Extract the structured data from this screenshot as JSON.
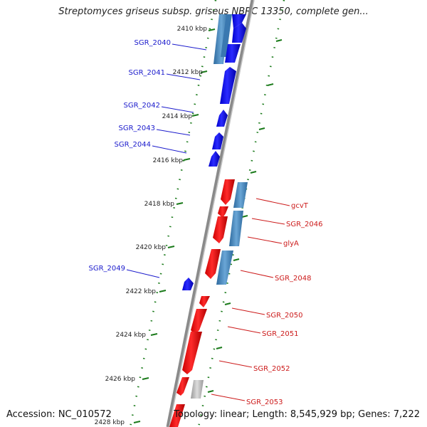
{
  "title": "Streptomyces griseus subsp. griseus NBRC 13350, complete gen...",
  "accession": "Accession: NC_010572",
  "topology": "Topology: linear; Length: 8,545,929 bp; Genes: 7,222",
  "colors": {
    "forward_gene": "#1a1aff",
    "reverse_gene": "#ff1a1a",
    "cds_steel": "#4a86b8",
    "grey_feature": "#bdbdbd",
    "tick": "#1a7a1a",
    "left_label": "#1a1acc",
    "right_label": "#cc1a1a"
  },
  "kbp_ticks": [
    {
      "kbp": 2410,
      "label": "2410 kbp"
    },
    {
      "kbp": 2412,
      "label": "2412 kbp"
    },
    {
      "kbp": 2414,
      "label": "2414 kbp"
    },
    {
      "kbp": 2416,
      "label": "2416 kbp"
    },
    {
      "kbp": 2418,
      "label": "2418 kbp"
    },
    {
      "kbp": 2420,
      "label": "2420 kbp"
    },
    {
      "kbp": 2422,
      "label": "2422 kbp"
    },
    {
      "kbp": 2424,
      "label": "2424 kbp"
    },
    {
      "kbp": 2426,
      "label": "2426 kbp"
    },
    {
      "kbp": 2428,
      "label": "2428 kbp"
    }
  ],
  "genes_left": [
    {
      "name": "SGR_2040"
    },
    {
      "name": "SGR_2041"
    },
    {
      "name": "SGR_2042"
    },
    {
      "name": "SGR_2043"
    },
    {
      "name": "SGR_2044"
    },
    {
      "name": "SGR_2049"
    }
  ],
  "genes_right": [
    {
      "name": "gcvT"
    },
    {
      "name": "SGR_2046"
    },
    {
      "name": "glyA"
    },
    {
      "name": "SGR_2048"
    },
    {
      "name": "SGR_2050"
    },
    {
      "name": "SGR_2051"
    },
    {
      "name": "SGR_2052"
    },
    {
      "name": "SGR_2053"
    }
  ]
}
